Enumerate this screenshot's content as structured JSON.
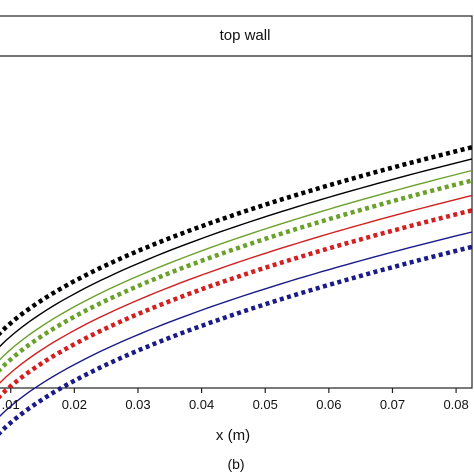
{
  "chart_data": {
    "type": "line",
    "title": "top wall",
    "xlabel": "x (m)",
    "ylabel": "",
    "xlim": [
      0.008,
      0.0825
    ],
    "ylim": [
      0,
      1
    ],
    "grid": false,
    "sub_label": "(b)",
    "x_ticks": [
      0.01,
      0.02,
      0.03,
      0.04,
      0.05,
      0.06,
      0.07,
      0.08
    ],
    "x_tick_labels": [
      ".01",
      "0.02",
      "0.03",
      "0.04",
      "0.05",
      "0.06",
      "0.07",
      "0.08"
    ],
    "series": [
      {
        "color": "#000000",
        "style": "dotted",
        "y0": 0.16,
        "y1": 0.725
      },
      {
        "color": "#000000",
        "style": "solid",
        "y0": 0.12,
        "y1": 0.69
      },
      {
        "color": "#6aa12a",
        "style": "solid",
        "y0": 0.08,
        "y1": 0.655
      },
      {
        "color": "#6aa12a",
        "style": "dotted",
        "y0": 0.05,
        "y1": 0.625
      },
      {
        "color": "#d21f1f",
        "style": "solid",
        "y0": 0.01,
        "y1": 0.58
      },
      {
        "color": "#d21f1f",
        "style": "dotted",
        "y0": -0.03,
        "y1": 0.535
      },
      {
        "color": "#1a1a8a",
        "style": "solid",
        "y0": -0.09,
        "y1": 0.47
      },
      {
        "color": "#1a1a8a",
        "style": "dotted",
        "y0": -0.14,
        "y1": 0.425
      }
    ]
  }
}
